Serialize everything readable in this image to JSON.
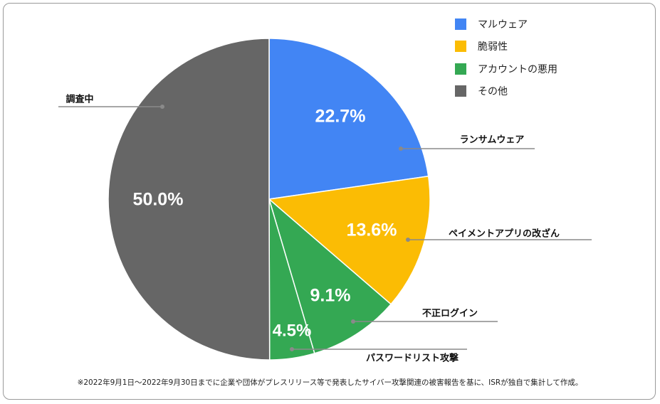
{
  "legend": [
    {
      "label": "マルウェア",
      "color": "#4285F4"
    },
    {
      "label": "脆弱性",
      "color": "#FBBC04"
    },
    {
      "label": "アカウントの悪用",
      "color": "#34A853"
    },
    {
      "label": "その他",
      "color": "#666666"
    }
  ],
  "footnote": "※2022年9月1日～2022年9月30日までに企業や団体がプレスリリース等で発表したサイバー攻撃関連の被害報告を基に、ISRが独自で集計して作成。",
  "chart_data": {
    "type": "pie",
    "slices": [
      {
        "label": "ランサムウェア",
        "value": 22.7,
        "display": "22.7%",
        "category": "マルウェア",
        "color": "#4285F4"
      },
      {
        "label": "ペイメントアプリの改ざん",
        "value": 13.6,
        "display": "13.6%",
        "category": "脆弱性",
        "color": "#FBBC04"
      },
      {
        "label": "不正ログイン",
        "value": 9.1,
        "display": "9.1%",
        "category": "アカウントの悪用",
        "color": "#34A853"
      },
      {
        "label": "パスワードリスト攻撃",
        "value": 4.5,
        "display": "4.5%",
        "category": "アカウントの悪用",
        "color": "#34A853"
      },
      {
        "label": "調査中",
        "value": 50.0,
        "display": "50.0%",
        "category": "その他",
        "color": "#666666"
      }
    ]
  }
}
